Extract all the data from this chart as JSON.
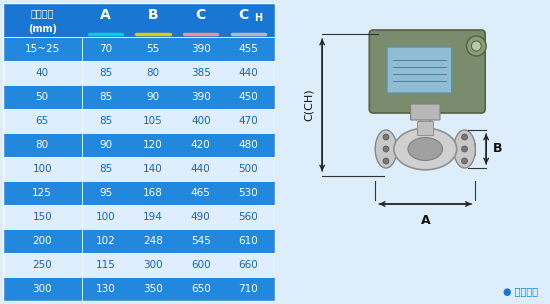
{
  "table_header_line1": "仪表口径",
  "table_header_line2": "(mm)",
  "col_labels": [
    "A",
    "B",
    "C",
    "CH"
  ],
  "header_colors_underline": [
    "#00d0d0",
    "#e8c800",
    "#f09090",
    "#b8b8b8"
  ],
  "col_header_bg": "#1976d2",
  "rows": [
    [
      "15~25",
      "70",
      "55",
      "390",
      "455"
    ],
    [
      "40",
      "85",
      "80",
      "385",
      "440"
    ],
    [
      "50",
      "85",
      "90",
      "390",
      "450"
    ],
    [
      "65",
      "85",
      "105",
      "400",
      "470"
    ],
    [
      "80",
      "90",
      "120",
      "420",
      "480"
    ],
    [
      "100",
      "85",
      "140",
      "440",
      "500"
    ],
    [
      "125",
      "95",
      "168",
      "465",
      "530"
    ],
    [
      "150",
      "100",
      "194",
      "490",
      "560"
    ],
    [
      "200",
      "102",
      "248",
      "545",
      "610"
    ],
    [
      "250",
      "115",
      "300",
      "600",
      "660"
    ],
    [
      "300",
      "130",
      "350",
      "650",
      "710"
    ]
  ],
  "row_bg_dark": "#2288dd",
  "row_bg_light": "#deeeff",
  "row_text_dark": "#ffffff",
  "row_text_light": "#1565c0",
  "dark_rows": [
    0,
    2,
    4,
    6,
    8,
    10
  ],
  "border_color": "#ffffff",
  "image_bg": "#ddeefa",
  "note_text": "● 常规仪表",
  "note_color": "#1976d2",
  "dim_label_C": "C(CH)",
  "dim_label_A": "A",
  "dim_label_B": "B"
}
